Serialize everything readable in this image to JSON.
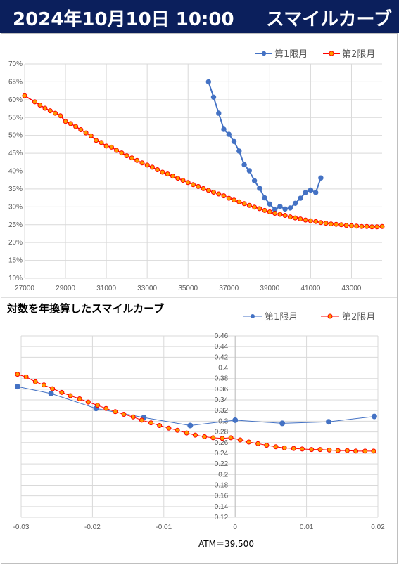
{
  "header": {
    "datetime": "2024年10月10日 10:00",
    "title": "スマイルカーブ",
    "bg_color": "#0b1f5c"
  },
  "legend": {
    "series1": "第1限月",
    "series2": "第2限月"
  },
  "colors": {
    "series1": "#4472c4",
    "series2": "#ff0000",
    "series2_fill": "#ff9900",
    "grid": "#d9d9d9"
  },
  "chart_data": [
    {
      "type": "line",
      "title": "",
      "xlim": [
        27000,
        44500
      ],
      "ylim": [
        0.1,
        0.7
      ],
      "x_ticks": [
        27000,
        29000,
        31000,
        33000,
        35000,
        37000,
        39000,
        41000,
        43000
      ],
      "y_ticks": [
        "10%",
        "15%",
        "20%",
        "25%",
        "30%",
        "35%",
        "40%",
        "45%",
        "50%",
        "55%",
        "60%",
        "65%",
        "70%"
      ],
      "legend_position": "top-right",
      "grid": true,
      "series": [
        {
          "name": "第1限月",
          "x": [
            36000,
            36250,
            36500,
            36750,
            37000,
            37250,
            37500,
            37750,
            38000,
            38250,
            38500,
            38750,
            39000,
            39250,
            39500,
            39750,
            40000,
            40250,
            40500,
            40750,
            41000,
            41250,
            41500
          ],
          "y": [
            0.65,
            0.607,
            0.562,
            0.517,
            0.503,
            0.483,
            0.456,
            0.418,
            0.401,
            0.373,
            0.352,
            0.325,
            0.308,
            0.292,
            0.301,
            0.294,
            0.297,
            0.31,
            0.324,
            0.34,
            0.347,
            0.34,
            0.381
          ]
        },
        {
          "name": "第2限月",
          "x": [
            27000,
            27500,
            27750,
            28000,
            28250,
            28500,
            28750,
            29000,
            29250,
            29500,
            29750,
            30000,
            30250,
            30500,
            30750,
            31000,
            31250,
            31500,
            31750,
            32000,
            32250,
            32500,
            32750,
            33000,
            33250,
            33500,
            33750,
            34000,
            34250,
            34500,
            34750,
            35000,
            35250,
            35500,
            35750,
            36000,
            36250,
            36500,
            36750,
            37000,
            37250,
            37500,
            37750,
            38000,
            38250,
            38500,
            38750,
            39000,
            39250,
            39500,
            39750,
            40000,
            40250,
            40500,
            40750,
            41000,
            41250,
            41500,
            41750,
            42000,
            42250,
            42500,
            42750,
            43000,
            43250,
            43500,
            43750,
            44000,
            44250,
            44500
          ],
          "y": [
            0.611,
            0.594,
            0.585,
            0.576,
            0.569,
            0.562,
            0.555,
            0.539,
            0.533,
            0.525,
            0.516,
            0.507,
            0.499,
            0.486,
            0.48,
            0.47,
            0.467,
            0.458,
            0.451,
            0.443,
            0.437,
            0.43,
            0.423,
            0.417,
            0.411,
            0.404,
            0.397,
            0.392,
            0.386,
            0.38,
            0.374,
            0.368,
            0.362,
            0.357,
            0.351,
            0.346,
            0.341,
            0.336,
            0.331,
            0.324,
            0.319,
            0.314,
            0.309,
            0.304,
            0.299,
            0.295,
            0.29,
            0.286,
            0.282,
            0.279,
            0.276,
            0.272,
            0.269,
            0.266,
            0.263,
            0.261,
            0.259,
            0.256,
            0.254,
            0.252,
            0.251,
            0.25,
            0.248,
            0.247,
            0.246,
            0.245,
            0.245,
            0.244,
            0.244,
            0.245
          ]
        }
      ]
    },
    {
      "type": "line",
      "title": "対数を年換算したスマイルカーブ",
      "xlabel": "ATM＝39,500",
      "xlim": [
        -0.03,
        0.02
      ],
      "ylim": [
        0.12,
        0.46
      ],
      "x_ticks": [
        "-0.03",
        "-0.02",
        "-0.01",
        "0",
        "0.01",
        "0.02"
      ],
      "y_ticks": [
        "0.12",
        "0.14",
        "0.16",
        "0.18",
        "0.2",
        "0.22",
        "0.24",
        "0.26",
        "0.28",
        "0.3",
        "0.32",
        "0.34",
        "0.36",
        "0.38",
        "0.4",
        "0.42",
        "0.44",
        "0.46"
      ],
      "legend_position": "top-right",
      "grid": true,
      "series": [
        {
          "name": "第1限月",
          "x": [
            -0.0305,
            -0.0258,
            -0.0195,
            -0.0128,
            -0.0063,
            0.0,
            0.0066,
            0.0131,
            0.0195
          ],
          "y": [
            0.365,
            0.352,
            0.324,
            0.307,
            0.292,
            0.302,
            0.296,
            0.299,
            0.309
          ]
        },
        {
          "name": "第2限月",
          "x": [
            -0.0305,
            -0.0293,
            -0.028,
            -0.0268,
            -0.0256,
            -0.0243,
            -0.0231,
            -0.0218,
            -0.0206,
            -0.0193,
            -0.0181,
            -0.0168,
            -0.0156,
            -0.0143,
            -0.0131,
            -0.0118,
            -0.0106,
            -0.0093,
            -0.0081,
            -0.0068,
            -0.0056,
            -0.0043,
            -0.0031,
            -0.0018,
            -0.0006,
            0.0007,
            0.0019,
            0.0032,
            0.0044,
            0.0057,
            0.0069,
            0.0082,
            0.0094,
            0.0107,
            0.0119,
            0.0132,
            0.0144,
            0.0157,
            0.0169,
            0.0182,
            0.0194
          ],
          "y": [
            0.388,
            0.383,
            0.374,
            0.368,
            0.361,
            0.354,
            0.348,
            0.342,
            0.336,
            0.33,
            0.324,
            0.318,
            0.313,
            0.308,
            0.302,
            0.297,
            0.292,
            0.287,
            0.283,
            0.278,
            0.274,
            0.271,
            0.269,
            0.268,
            0.269,
            0.265,
            0.261,
            0.258,
            0.255,
            0.252,
            0.25,
            0.249,
            0.248,
            0.247,
            0.247,
            0.246,
            0.245,
            0.245,
            0.244,
            0.244,
            0.244
          ]
        }
      ]
    }
  ]
}
